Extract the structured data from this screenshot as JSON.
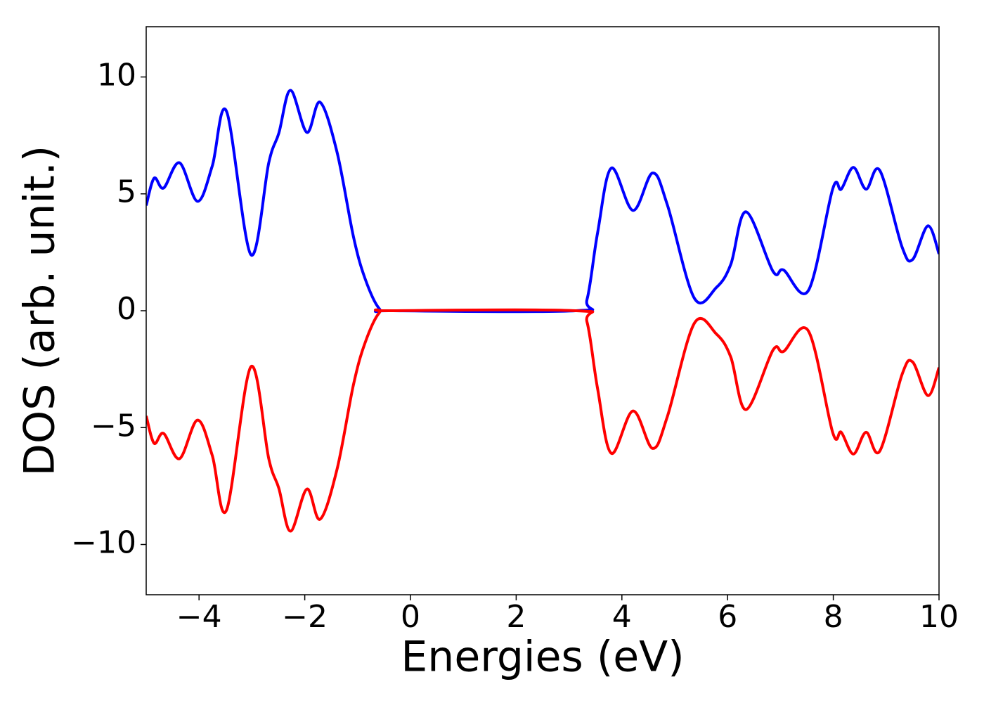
{
  "chart_data": {
    "type": "line",
    "xlabel": "Energies (eV)",
    "ylabel": "DOS (arb. unit.)",
    "x": [
      -5,
      -4.85,
      -4.67,
      -4.37,
      -4.03,
      -3.75,
      -3.48,
      -3.02,
      -2.68,
      -2.49,
      -2.27,
      -1.96,
      -1.71,
      -1.39,
      -1.08,
      -0.86,
      -0.59,
      -0.33,
      3.13,
      3.34,
      3.54,
      3.8,
      4.21,
      4.58,
      4.86,
      5.37,
      5.79,
      6.06,
      6.35,
      6.86,
      7.06,
      7.53,
      7.99,
      8.15,
      8.38,
      8.62,
      8.88,
      9.3,
      9.5,
      9.79,
      10
    ],
    "series": [
      {
        "color": "#0000ff",
        "values": [
          4.5,
          5.67,
          5.25,
          6.33,
          4.68,
          6.19,
          8.53,
          2.4,
          6.34,
          7.6,
          9.43,
          7.63,
          8.92,
          6.79,
          3.18,
          1.38,
          0.09,
          0,
          0,
          0.48,
          3.33,
          6.1,
          4.29,
          5.89,
          4.53,
          0.54,
          1.0,
          1.98,
          4.23,
          1.68,
          1.74,
          0.87,
          5.22,
          5.2,
          6.13,
          5.2,
          6.0,
          2.73,
          2.19,
          3.63,
          2.43
        ]
      },
      {
        "color": "#ff0000",
        "values": [
          -4.5,
          -5.67,
          -5.25,
          -6.33,
          -4.68,
          -6.19,
          -8.53,
          -2.4,
          -6.34,
          -7.6,
          -9.43,
          -7.63,
          -8.92,
          -6.79,
          -3.18,
          -1.38,
          -0.09,
          0,
          0,
          -0.48,
          -3.33,
          -6.1,
          -4.29,
          -5.89,
          -4.53,
          -0.54,
          -1.0,
          -1.98,
          -4.23,
          -1.68,
          -1.74,
          -0.87,
          -5.22,
          -5.2,
          -6.13,
          -5.2,
          -6.0,
          -2.73,
          -2.19,
          -3.63,
          -2.43
        ]
      }
    ],
    "xlim": [
      -5,
      10
    ],
    "xticks": [
      {
        "value": -4,
        "label": "−4"
      },
      {
        "value": -2,
        "label": "−2"
      },
      0,
      2,
      4,
      6,
      8,
      10
    ],
    "ylim": [
      -12.15,
      12.15
    ],
    "yticks": [
      {
        "value": -10,
        "label": "−10"
      },
      {
        "value": -5,
        "label": "−5"
      },
      0,
      5,
      10
    ],
    "grid": false
  }
}
